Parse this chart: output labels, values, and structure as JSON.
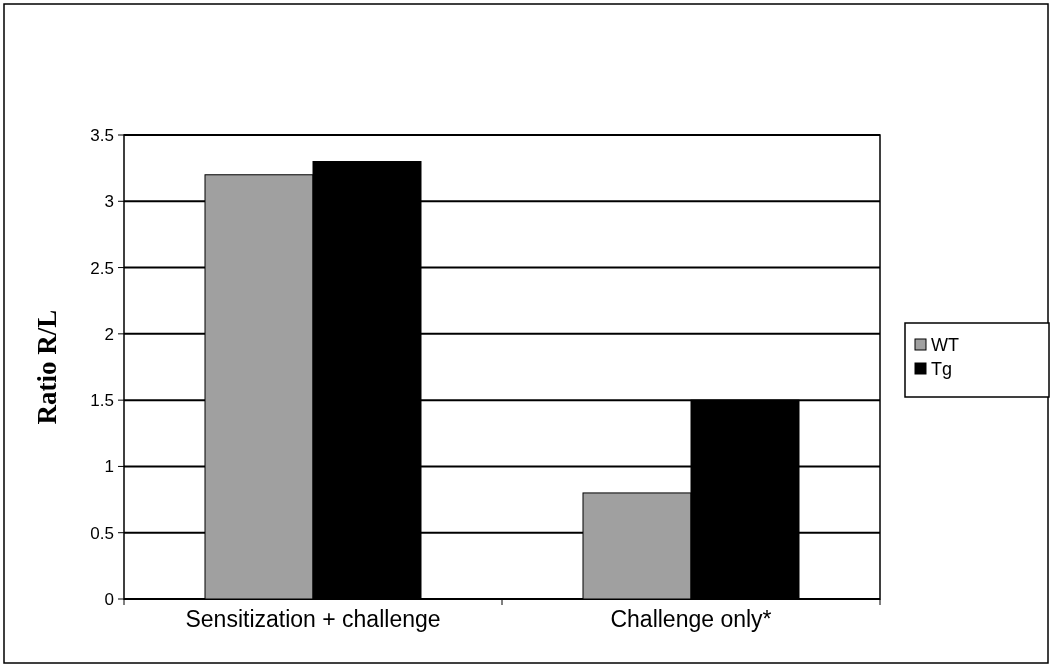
{
  "chart_data": {
    "type": "bar",
    "ylabel": "Ratio R/L",
    "categories": [
      "Sensitization + challenge",
      "Challenge only*"
    ],
    "series": [
      {
        "name": "WT",
        "color": "#a0a0a0",
        "values": [
          3.2,
          0.8
        ]
      },
      {
        "name": "Tg",
        "color": "#000000",
        "values": [
          3.3,
          1.5
        ]
      }
    ],
    "ylim": [
      0,
      3.5
    ],
    "yticks": [
      0,
      0.5,
      1,
      1.5,
      2,
      2.5,
      3,
      3.5
    ],
    "grid": "y",
    "legend": "right"
  }
}
